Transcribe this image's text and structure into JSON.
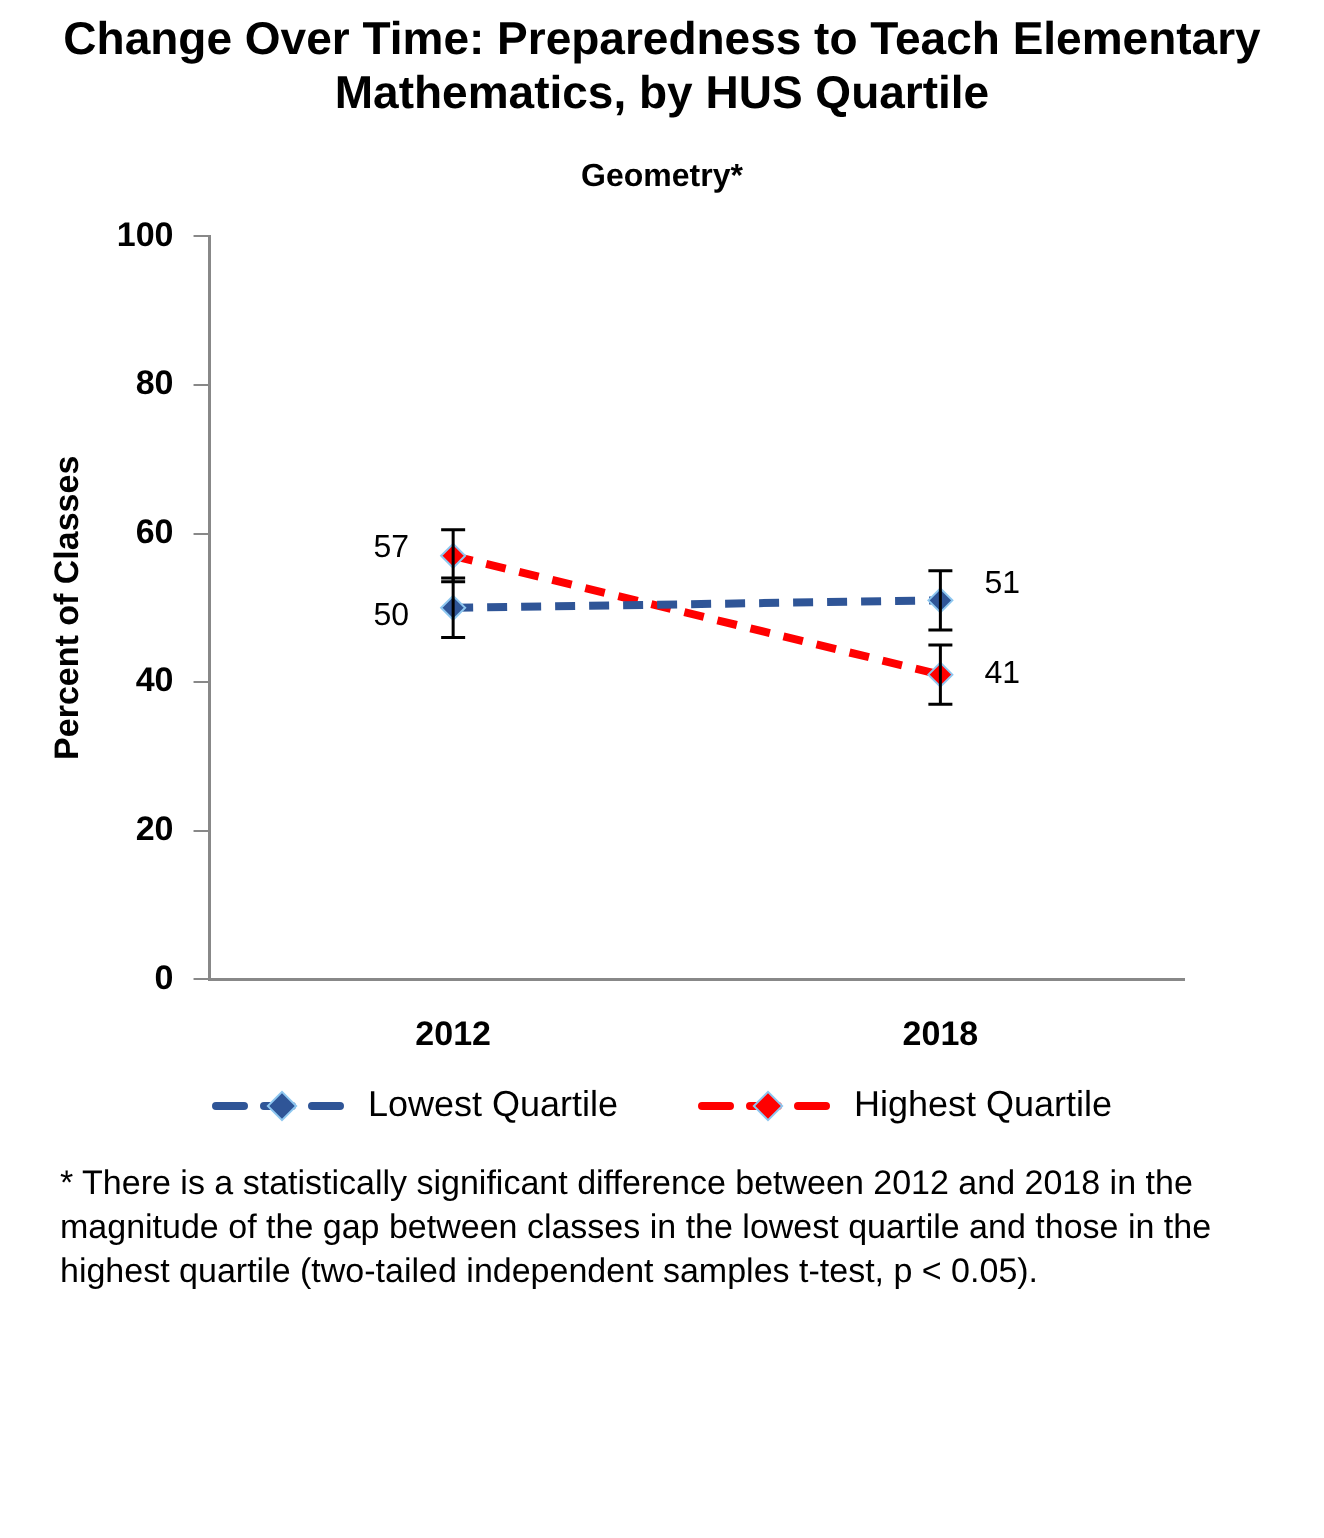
{
  "chart_data": {
    "type": "line",
    "title": "Change Over Time: Preparedness to Teach Elementary Mathematics, by HUS Quartile",
    "subtitle": "Geometry*",
    "ylabel": "Percent of Classes",
    "categories": [
      "2012",
      "2018"
    ],
    "series": [
      {
        "name": "Lowest Quartile",
        "color": "#2f5597",
        "values": [
          50,
          51
        ],
        "errors": [
          4,
          4
        ]
      },
      {
        "name": "Highest Quartile",
        "color": "#ff0000",
        "values": [
          57,
          41
        ],
        "errors": [
          3.5,
          4
        ]
      }
    ],
    "ylim": [
      0,
      100
    ],
    "yticks": [
      0,
      20,
      40,
      60,
      80,
      100
    ],
    "grid": false,
    "legend": "bottom",
    "marker": "diamond",
    "line_style": "dashed",
    "data_labels": true,
    "annotations": [
      "*  There is a statistically significant difference between 2012 and 2018 in the magnitude of the gap between classes in the lowest quartile and those in the highest quartile (two-tailed independent samples t-test, p < 0.05)."
    ]
  }
}
